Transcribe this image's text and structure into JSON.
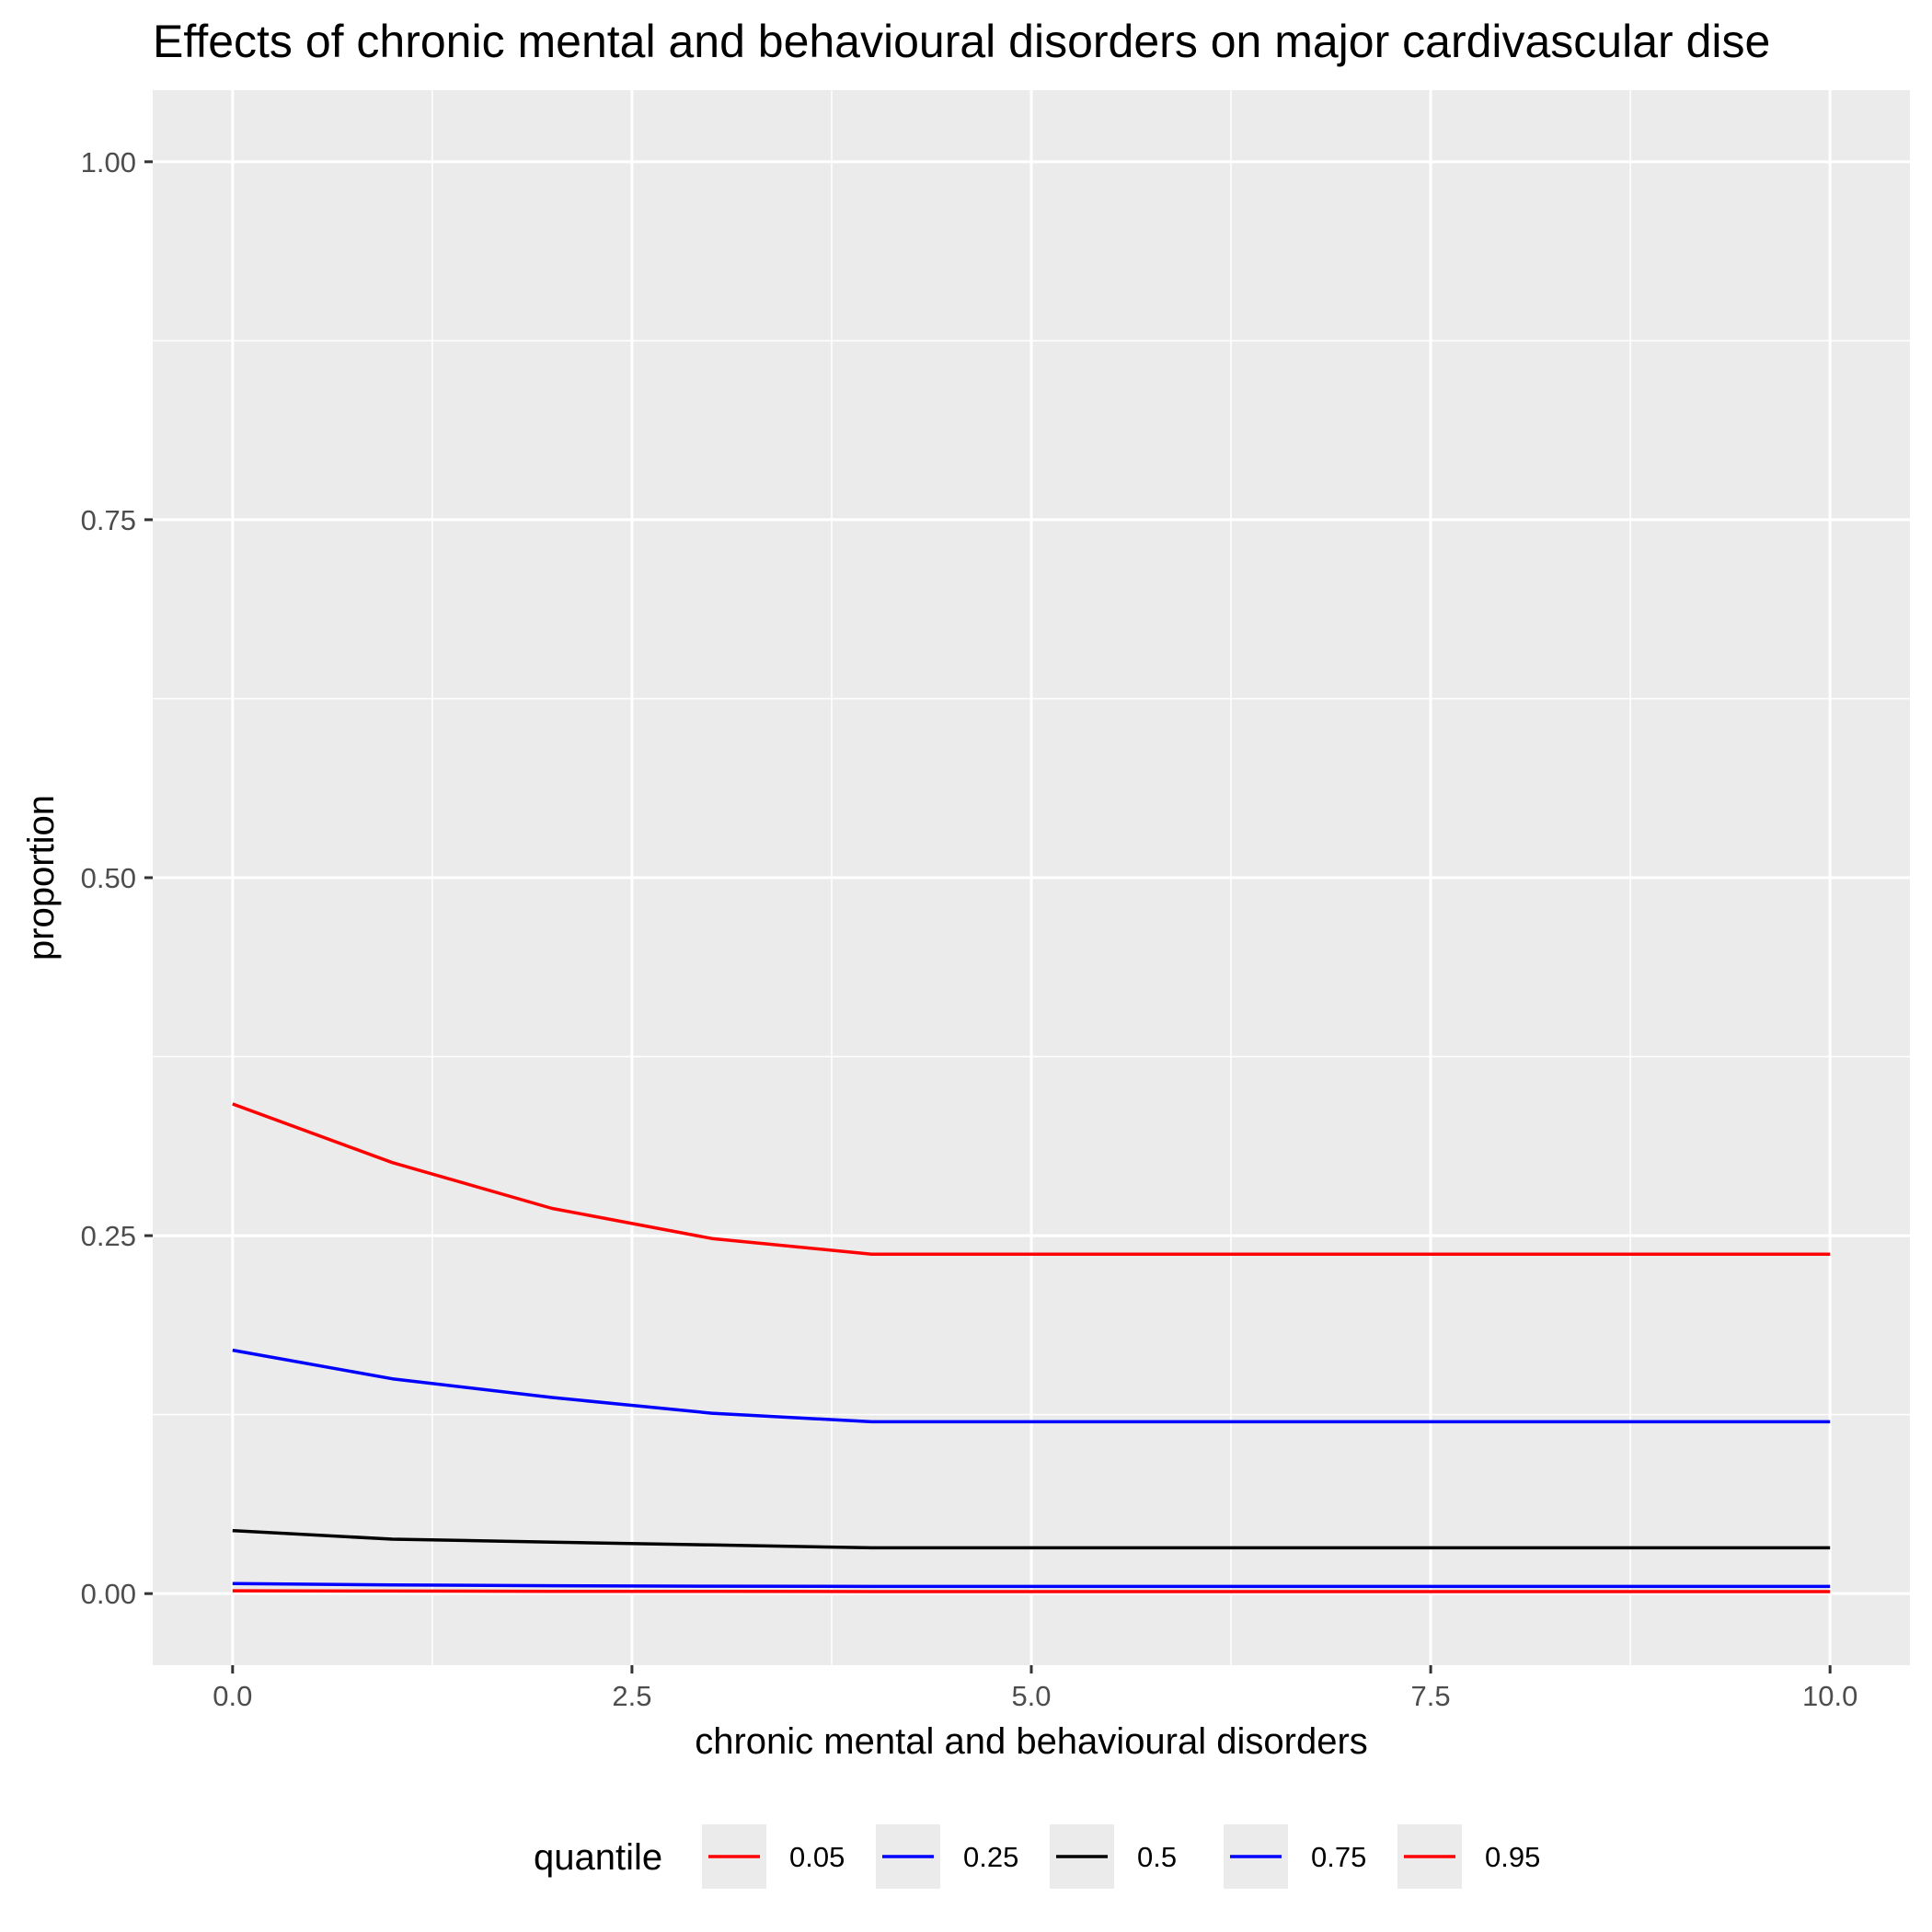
{
  "chart_data": {
    "type": "line",
    "title": "Effects of chronic mental and behavioural disorders on major cardivascular dise",
    "xlabel": "chronic mental and behavioural disorders",
    "ylabel": "proportion",
    "xlim": [
      -0.5,
      10.5
    ],
    "ylim": [
      -0.05,
      1.05
    ],
    "x_ticks": [
      0,
      2.5,
      5,
      7.5,
      10
    ],
    "x_tick_labels": [
      "0.0",
      "2.5",
      "5.0",
      "7.5",
      "10.0"
    ],
    "y_ticks": [
      0,
      0.25,
      0.5,
      0.75,
      1
    ],
    "y_tick_labels": [
      "0.00",
      "0.25",
      "0.50",
      "0.75",
      "1.00"
    ],
    "grid": true,
    "legend": {
      "title": "quantile",
      "position": "bottom"
    },
    "x": [
      0,
      1,
      2,
      3,
      4,
      5,
      6,
      7,
      8,
      9,
      10
    ],
    "series": [
      {
        "name": "0.05",
        "color": "#FF0000",
        "values": [
          0.002,
          0.0018,
          0.0016,
          0.0015,
          0.0014,
          0.0014,
          0.0014,
          0.0014,
          0.0014,
          0.0014,
          0.0014
        ]
      },
      {
        "name": "0.25",
        "color": "#0000FF",
        "values": [
          0.17,
          0.15,
          0.137,
          0.126,
          0.12,
          0.12,
          0.12,
          0.12,
          0.12,
          0.12,
          0.12
        ]
      },
      {
        "name": "0.5",
        "color": "#000000",
        "values": [
          0.044,
          0.038,
          0.036,
          0.034,
          0.032,
          0.032,
          0.032,
          0.032,
          0.032,
          0.032,
          0.032
        ]
      },
      {
        "name": "0.75",
        "color": "#0000FF",
        "values": [
          0.007,
          0.006,
          0.0055,
          0.0052,
          0.005,
          0.005,
          0.005,
          0.005,
          0.005,
          0.005,
          0.005
        ]
      },
      {
        "name": "0.95",
        "color": "#FF0000",
        "values": [
          0.342,
          0.301,
          0.269,
          0.248,
          0.237,
          0.237,
          0.237,
          0.237,
          0.237,
          0.237,
          0.237
        ]
      }
    ]
  }
}
